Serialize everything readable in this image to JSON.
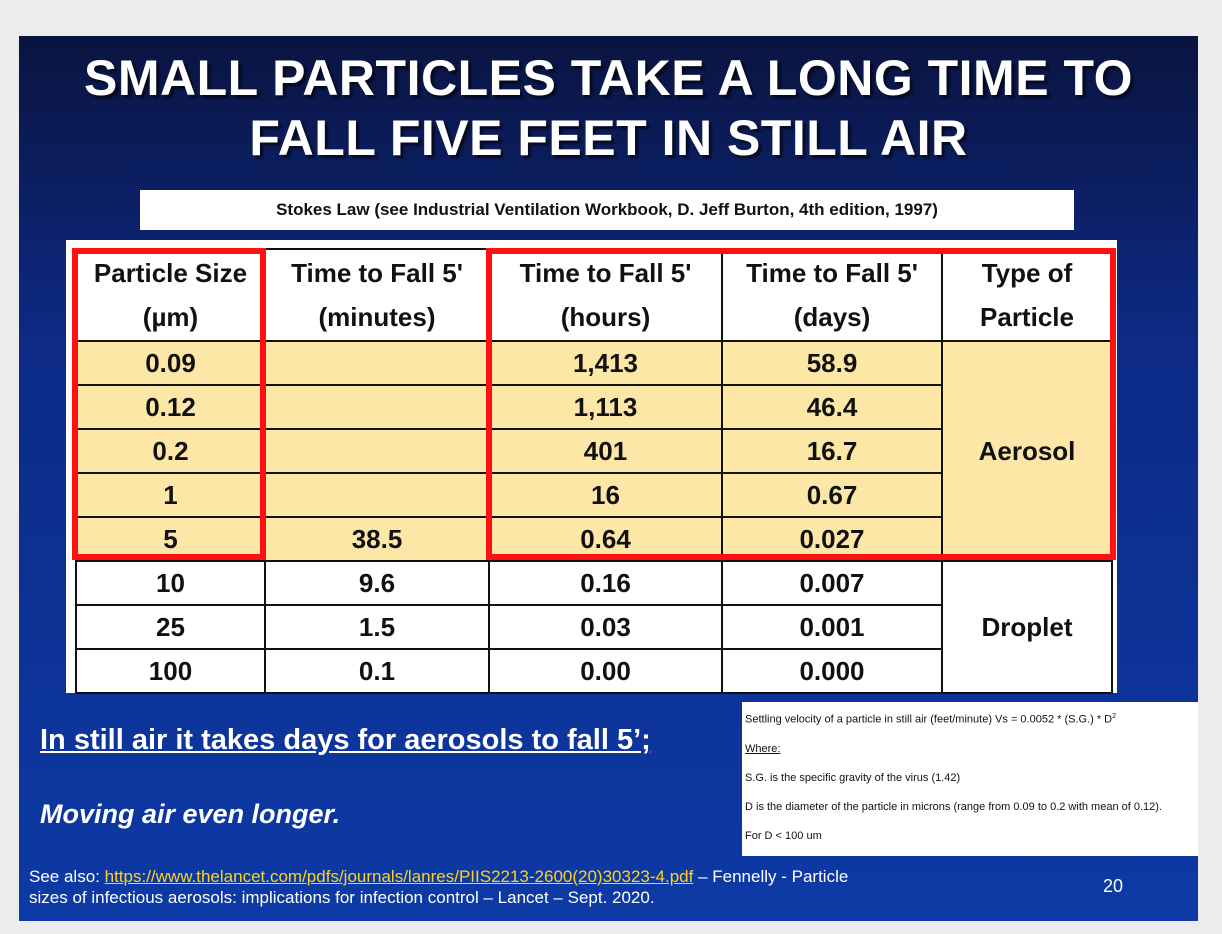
{
  "slide": {
    "title_line1": "SMALL PARTICLES TAKE A LONG TIME TO",
    "title_line2": "FALL FIVE FEET IN STILL AIR",
    "source": "Stokes Law (see Industrial Ventilation Workbook, D. Jeff Burton, 4th edition, 1997)",
    "takeaway": "In still air it takes days for aerosols to fall 5’;",
    "moving_air": "Moving air even longer.",
    "see_also_prefix": "See also: ",
    "see_also_link": "https://www.thelancet.com/pdfs/journals/lanres/PIIS2213-2600(20)30323-4.pdf",
    "see_also_suffix_1": " – Fennelly - Particle",
    "see_also_suffix_2": "sizes of infectious aerosols: implications for infection control – Lancet – Sept. 2020.",
    "page_number": "20"
  },
  "table": {
    "headers": [
      {
        "line1": "Particle Size",
        "line2": "(µm)"
      },
      {
        "line1": "Time to Fall 5'",
        "line2": "(minutes)"
      },
      {
        "line1": "Time to Fall 5'",
        "line2": "(hours)"
      },
      {
        "line1": "Time to Fall 5'",
        "line2": "(days)"
      },
      {
        "line1": "Type of",
        "line2": "Particle"
      }
    ],
    "rows": [
      {
        "size": "0.09",
        "minutes": "",
        "hours": "1,413",
        "days": "58.9"
      },
      {
        "size": "0.12",
        "minutes": "",
        "hours": "1,113",
        "days": "46.4"
      },
      {
        "size": "0.2",
        "minutes": "",
        "hours": "401",
        "days": "16.7"
      },
      {
        "size": "1",
        "minutes": "",
        "hours": "16",
        "days": "0.67"
      },
      {
        "size": "5",
        "minutes": "38.5",
        "hours": "0.64",
        "days": "0.027"
      },
      {
        "size": "10",
        "minutes": "9.6",
        "hours": "0.16",
        "days": "0.007"
      },
      {
        "size": "25",
        "minutes": "1.5",
        "hours": "0.03",
        "days": "0.001"
      },
      {
        "size": "100",
        "minutes": "0.1",
        "hours": "0.00",
        "days": "0.000"
      }
    ],
    "type_aerosol": "Aerosol",
    "type_droplet": "Droplet"
  },
  "formula": {
    "line1": "Settling velocity of a particle in still air (feet/minute) Vs = 0.0052 * (S.G.) * D",
    "line1_sup": "2",
    "where": "Where:",
    "sg": "S.G. is the specific gravity of the virus (1.42)",
    "d": "D is the diameter of the particle in microns (range from 0.09 to 0.2 with mean of 0.12).",
    "limit": "For D < 100 um"
  },
  "colors": {
    "slide_background": "#0d2a86",
    "aerosol_fill": "#fde7a6",
    "highlight_red": "#ff1111",
    "link_yellow": "#ffd21f"
  }
}
